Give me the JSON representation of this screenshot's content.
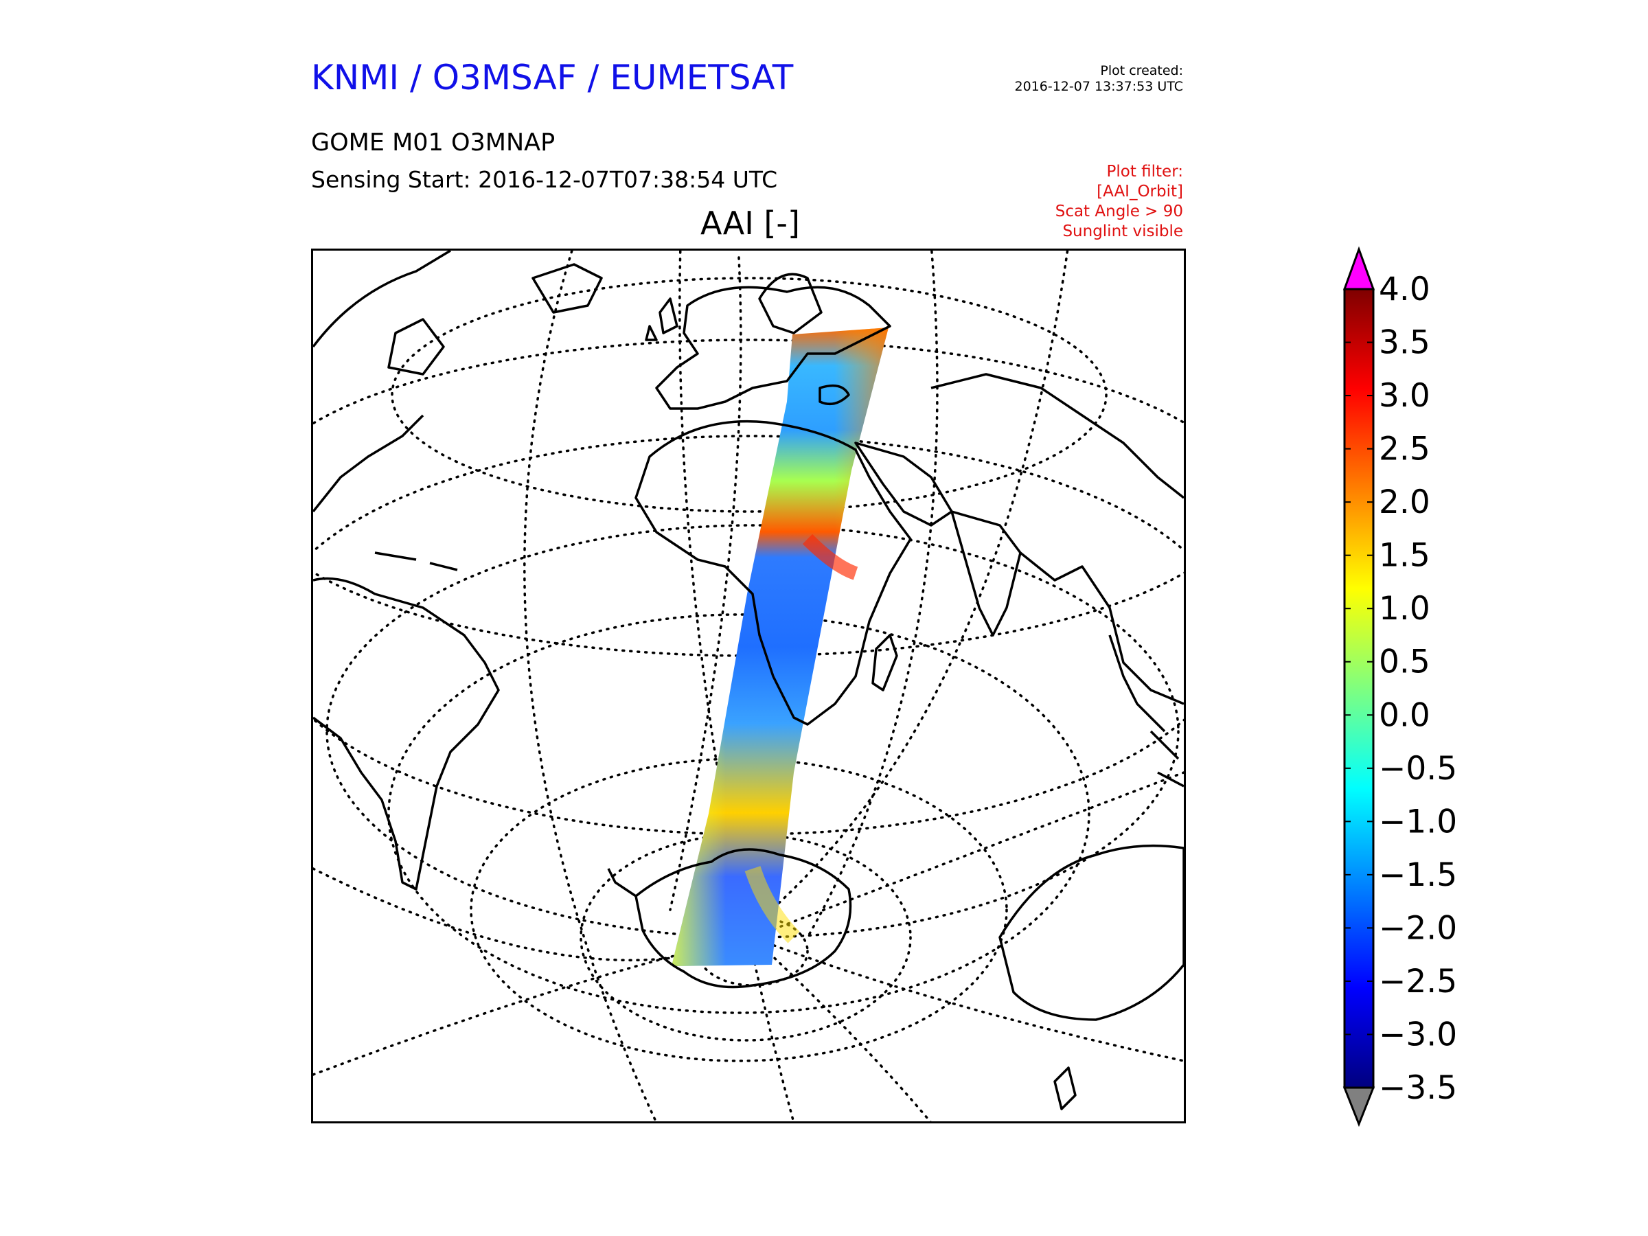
{
  "header": {
    "organisation": "KNMI / O3MSAF / EUMETSAT",
    "plot_created_label": "Plot created:",
    "plot_created_value": "2016-12-07 13:37:53 UTC",
    "product": "GOME M01 O3MNAP",
    "sensing_start": "Sensing Start: 2016-12-07T07:38:54 UTC",
    "filter_lines": [
      "Plot filter:",
      "[AAI_Orbit]",
      "Scat Angle > 90",
      "Sunglint visible"
    ],
    "variable_title": "AAI [-]"
  },
  "colorbar": {
    "variable": "AAI",
    "min": -3.5,
    "max": 4.0,
    "ticks": [
      "4.0",
      "3.5",
      "3.0",
      "2.5",
      "2.0",
      "1.5",
      "1.0",
      "0.5",
      "0.0",
      "−0.5",
      "−1.0",
      "−1.5",
      "−2.0",
      "−2.5",
      "−3.0",
      "−3.5"
    ],
    "colors": [
      "#00007f",
      "#0000ff",
      "#007fff",
      "#00ffff",
      "#7fff7f",
      "#ffff00",
      "#ff7f00",
      "#ff0000",
      "#7f0000"
    ],
    "over_color": "#ff00ff",
    "under_color": "#808080"
  },
  "map": {
    "projection": "orthographic",
    "coastline_color": "#000000",
    "graticule_style": "dotted",
    "swath": "GOME AAI orbit swath from northern Europe over Africa to Antarctica"
  }
}
